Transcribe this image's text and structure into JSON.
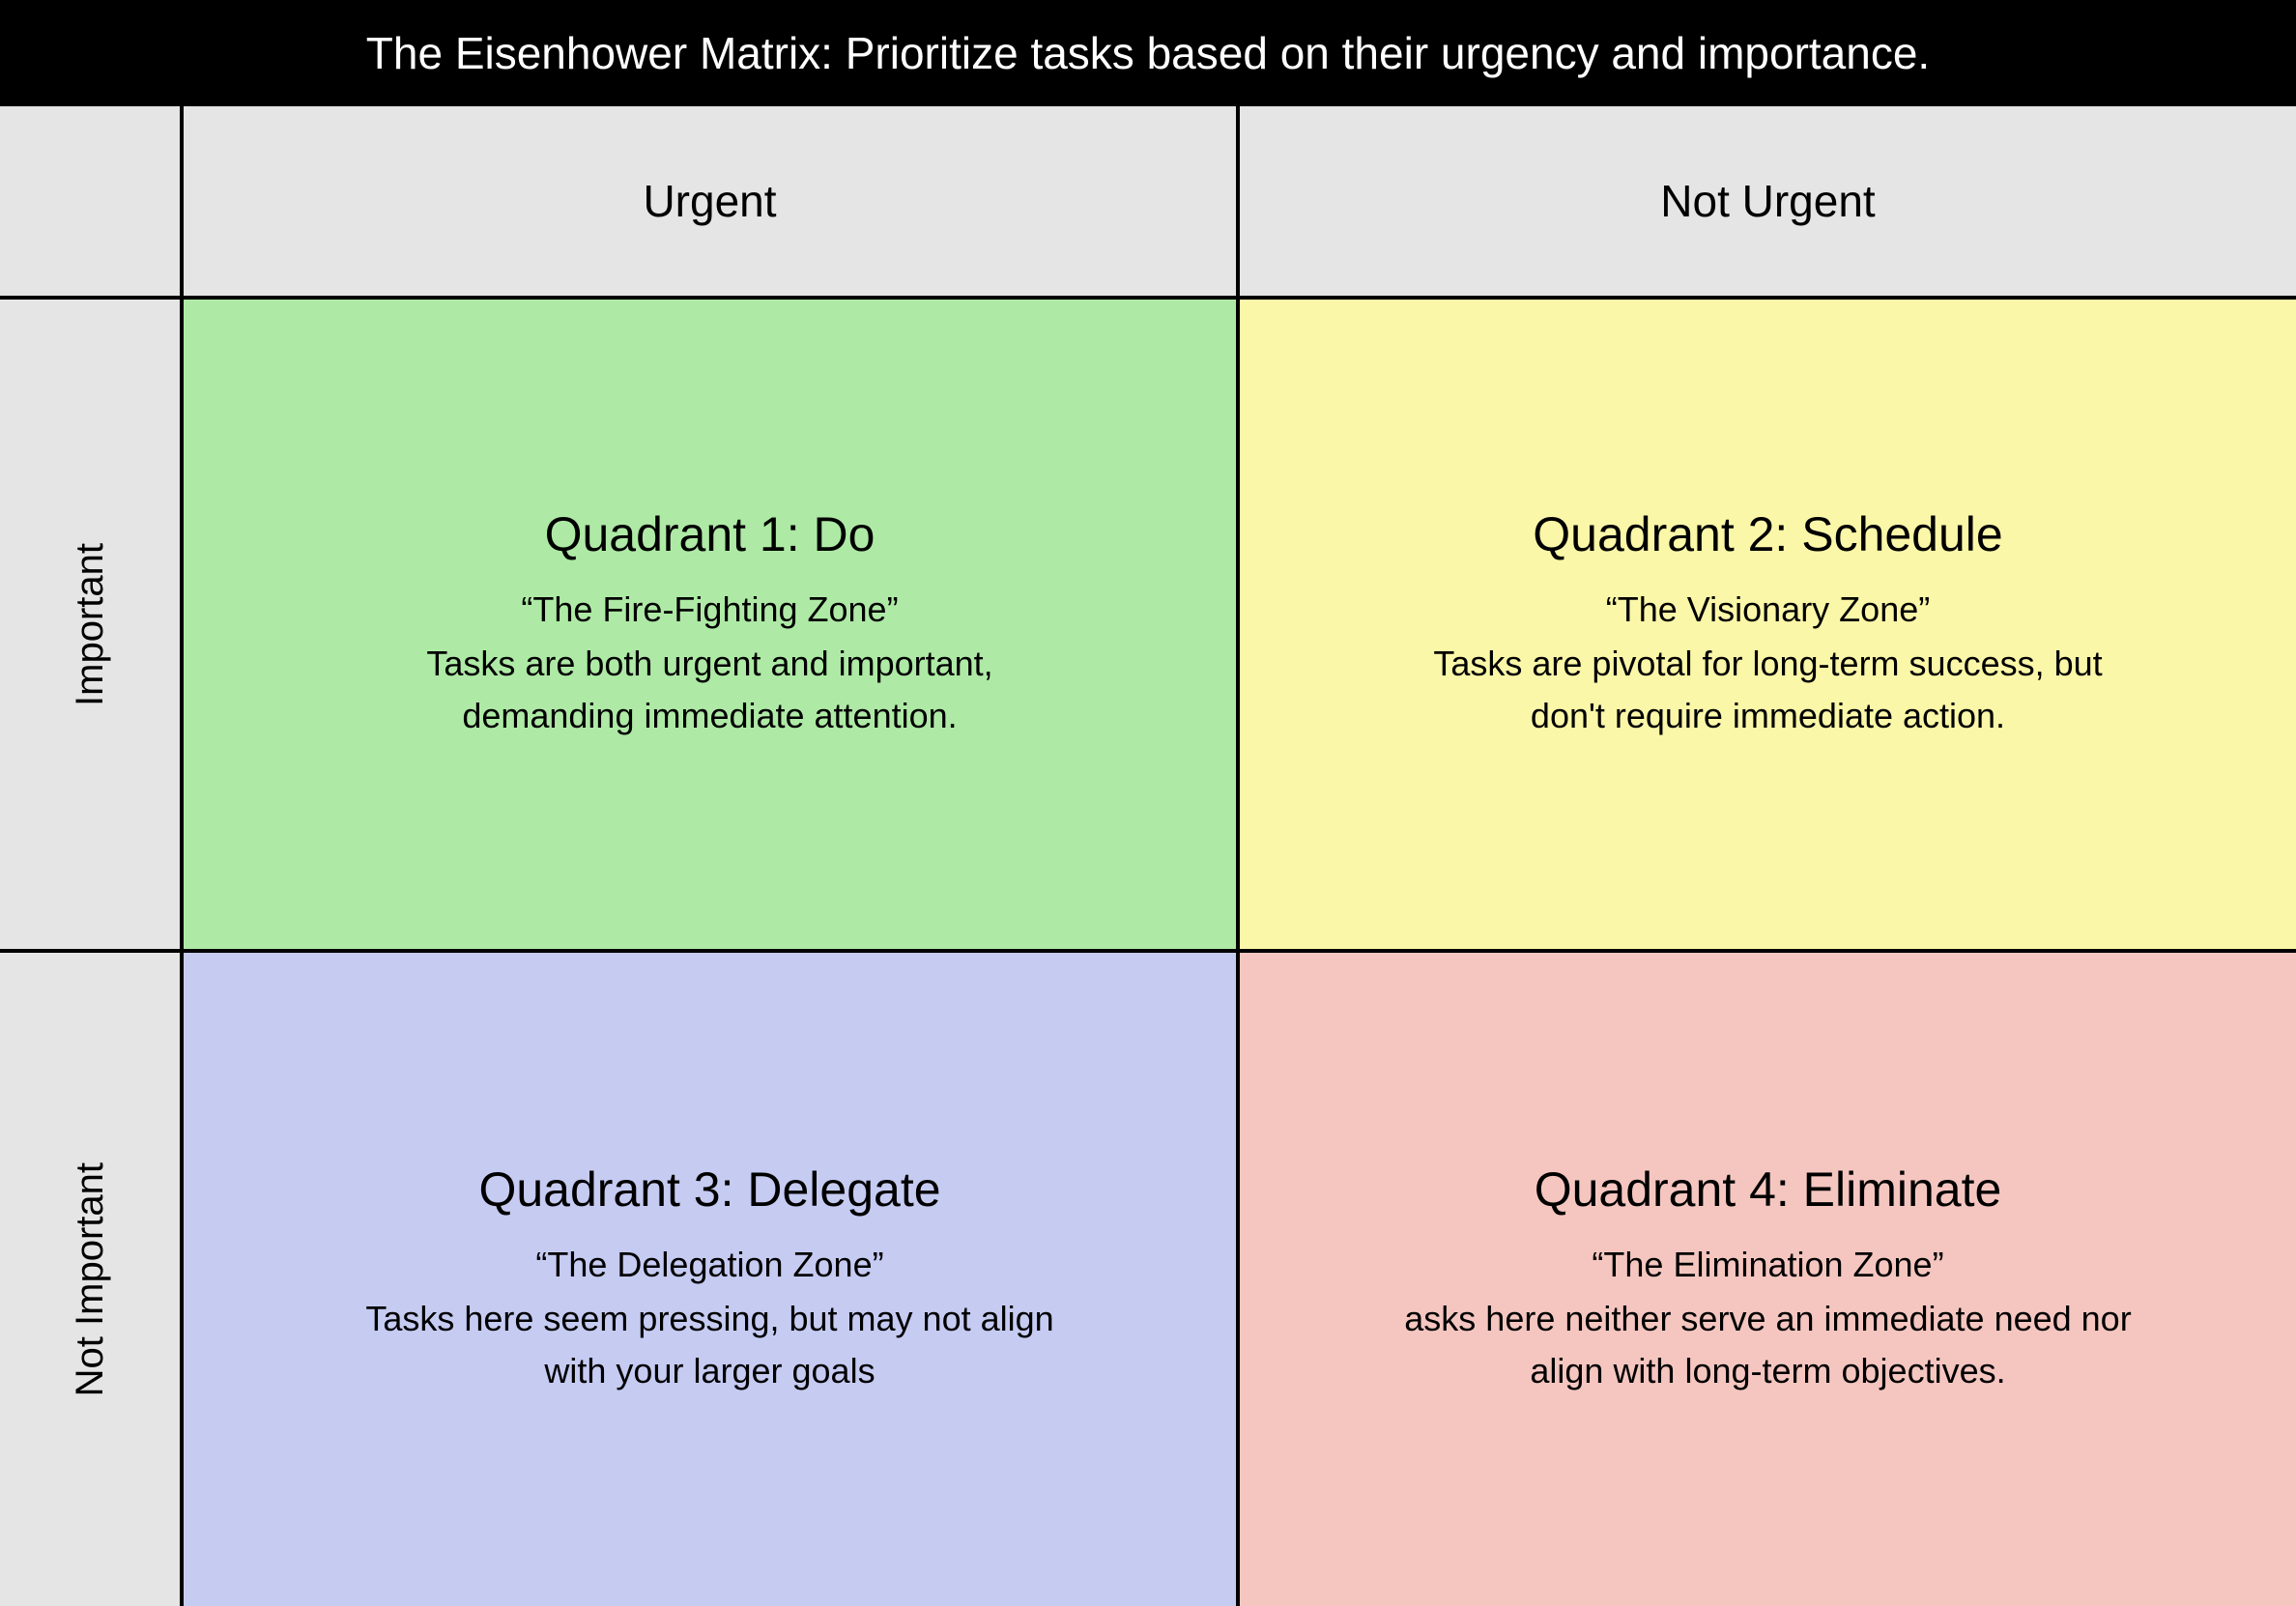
{
  "title": "The Eisenhower Matrix: Prioritize tasks based on their urgency and importance.",
  "styling": {
    "title_bg": "#000000",
    "title_color": "#ffffff",
    "title_fontsize": 46,
    "page_bg": "#e5e5e5",
    "border_color": "#000000",
    "border_width": 4,
    "header_fontsize": 46,
    "row_label_fontsize": 40,
    "quadrant_title_fontsize": 50,
    "quadrant_body_fontsize": 36,
    "grid_columns": [
      "190px",
      "1fr",
      "1fr"
    ],
    "grid_rows": [
      "200px",
      "1fr",
      "1fr"
    ],
    "font_family": "-apple-system, BlinkMacSystemFont, Segoe UI, Helvetica, Arial, sans-serif"
  },
  "columns": {
    "col1": "Urgent",
    "col2": "Not Urgent"
  },
  "rows": {
    "row1": "Important",
    "row2": "Not Important"
  },
  "quadrants": {
    "q1": {
      "title": "Quadrant 1: Do",
      "zone": "“The Fire-Fighting Zone”",
      "description": "Tasks are both urgent and important, demanding immediate attention.",
      "bg_color": "#aeeaa5"
    },
    "q2": {
      "title": "Quadrant 2: Schedule",
      "zone": "“The Visionary Zone”",
      "description": "Tasks are pivotal for long-term success, but don't require immediate action.",
      "bg_color": "#fbf7a8"
    },
    "q3": {
      "title": "Quadrant 3: Delegate",
      "zone": "“The Delegation Zone”",
      "description": "Tasks here seem pressing, but may not align with your larger goals",
      "bg_color": "#c6cbf2"
    },
    "q4": {
      "title": "Quadrant 4: Eliminate",
      "zone": "“The Elimination Zone”",
      "description": "asks here neither serve an immediate need nor align with long-term objectives.",
      "bg_color": "#f5c6c0"
    }
  }
}
